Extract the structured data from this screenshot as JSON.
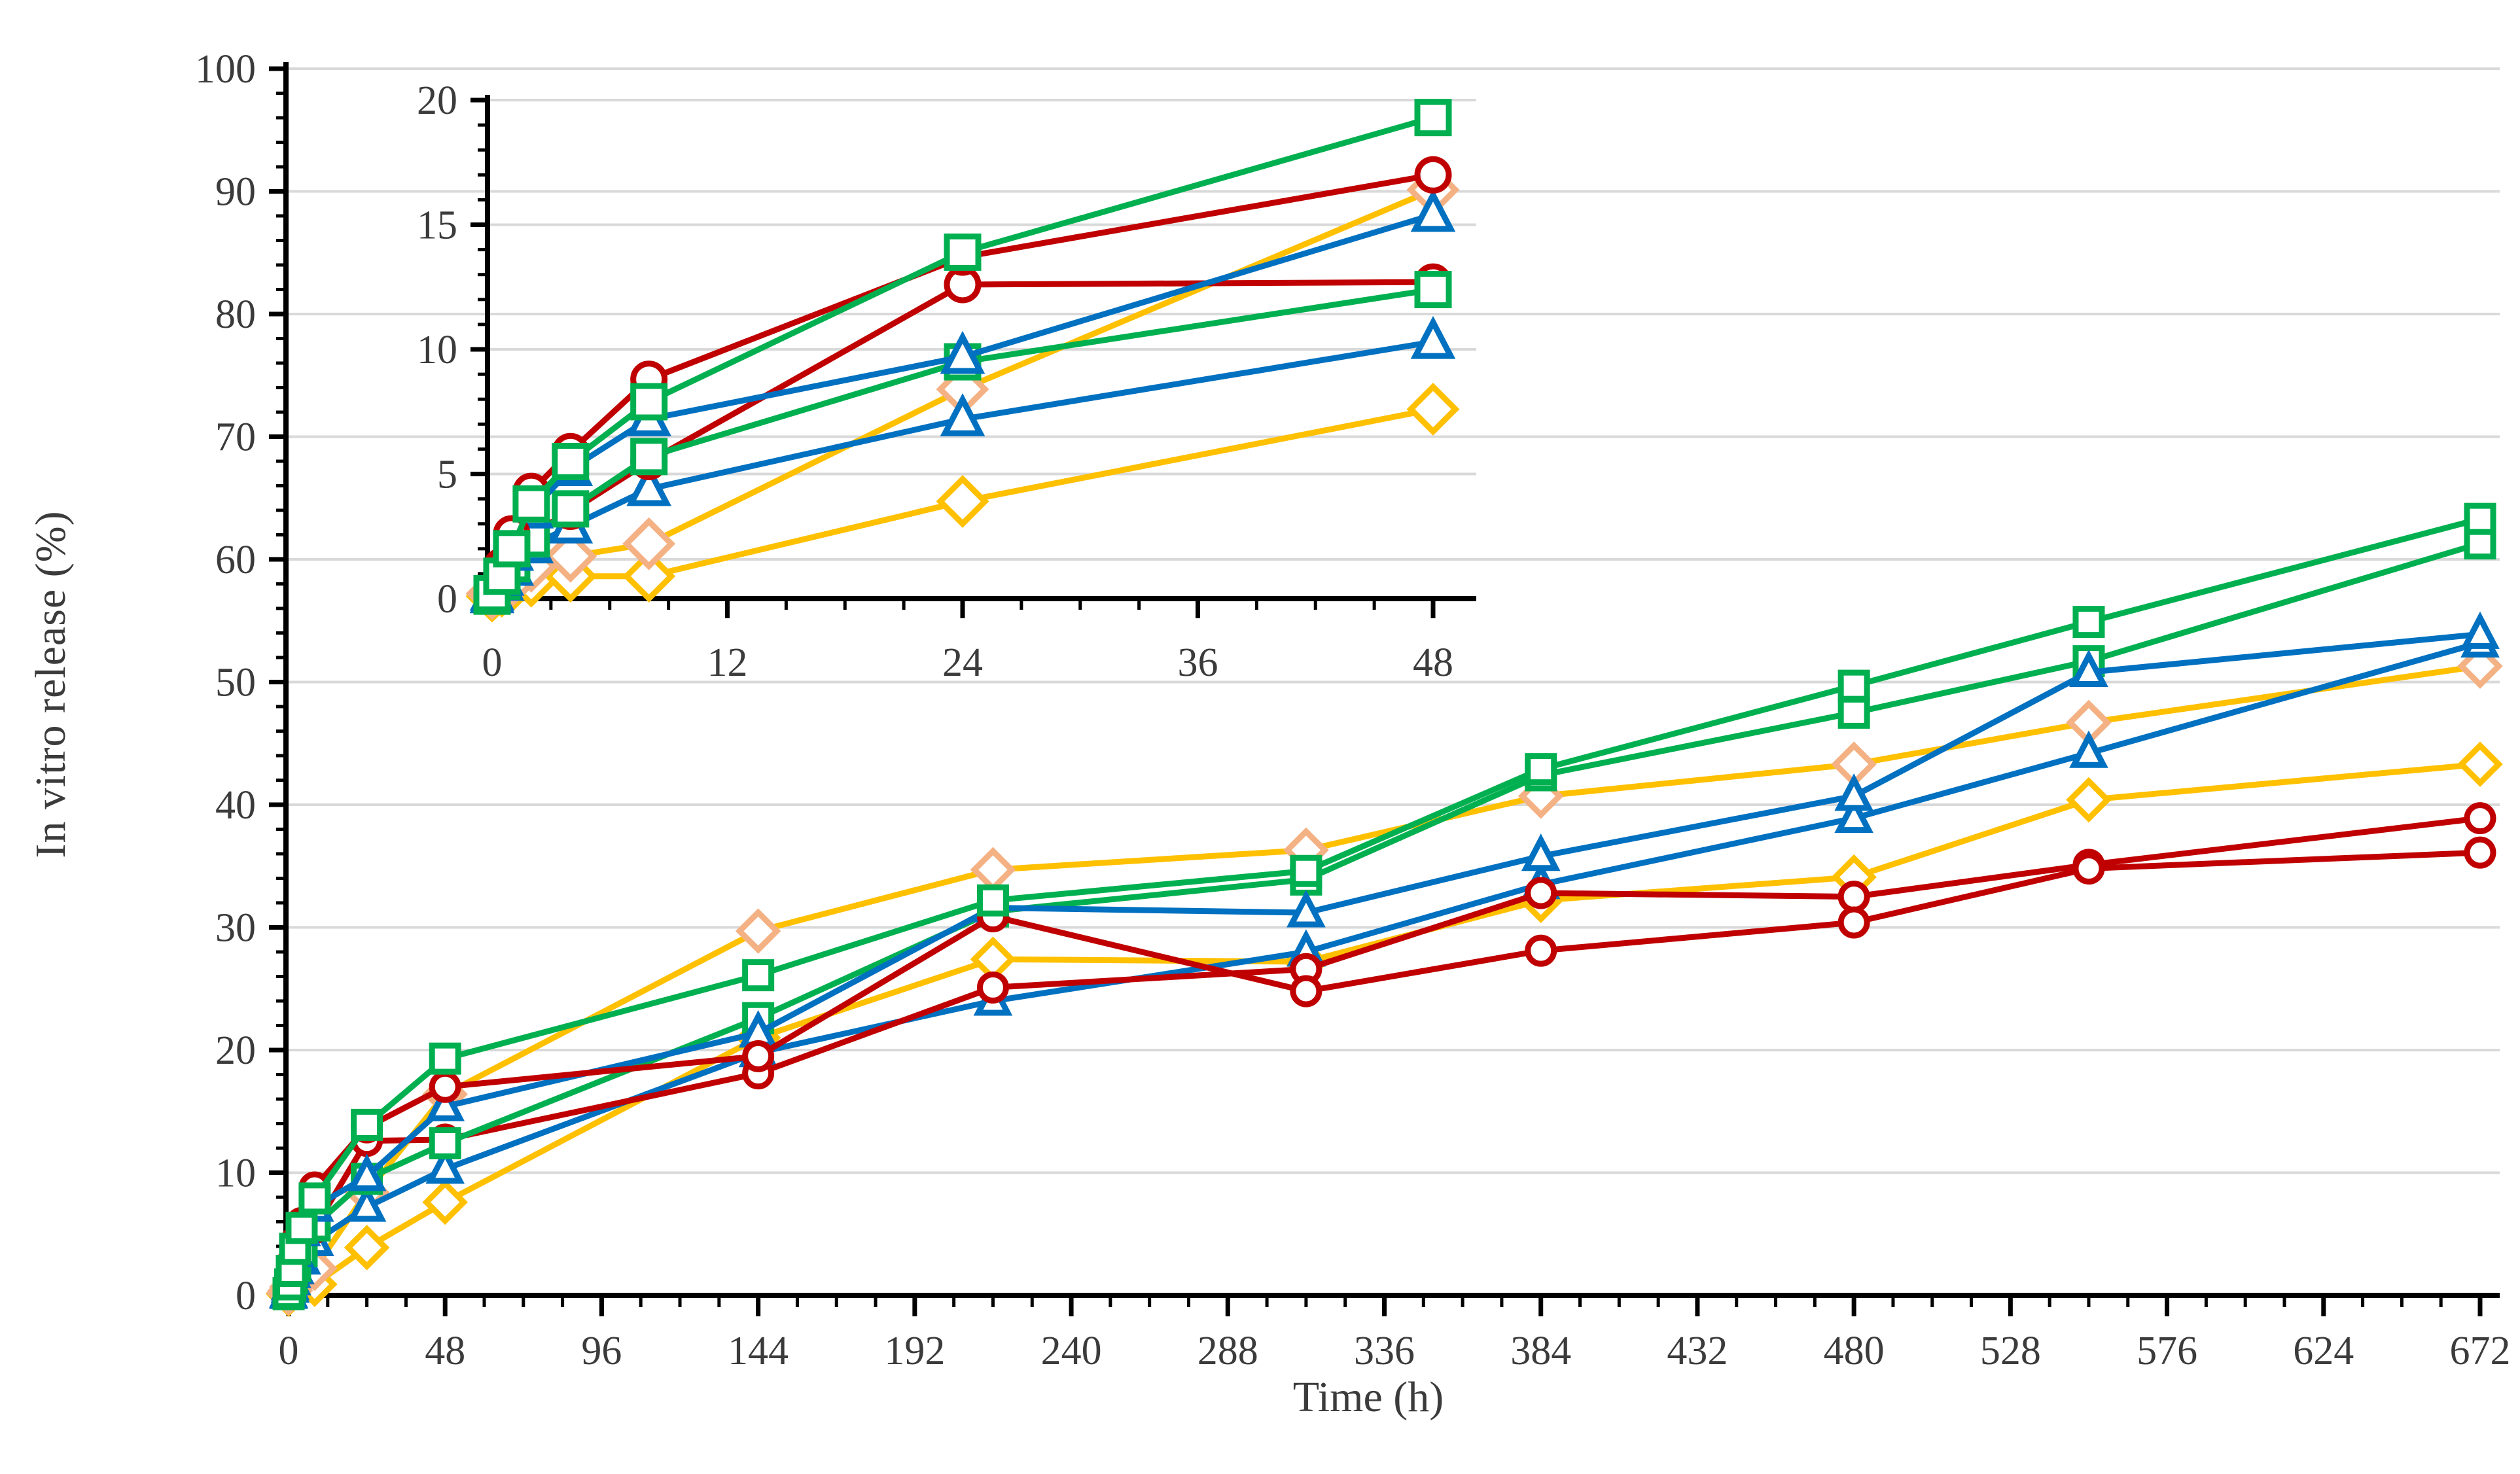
{
  "chart_data": {
    "type": "line",
    "title": "",
    "xlabel": "Time (h)",
    "ylabel": "In vitro release (%)",
    "grid": "horizontal-only",
    "legend": "none",
    "main_axes": {
      "xlim": [
        0,
        672
      ],
      "ylim": [
        0,
        100
      ],
      "x_major_ticks": [
        0,
        48,
        96,
        144,
        192,
        240,
        288,
        336,
        384,
        432,
        480,
        528,
        576,
        624,
        672
      ],
      "x_minor_step": 12,
      "y_major_ticks": [
        0,
        10,
        20,
        30,
        40,
        50,
        60,
        70,
        80,
        90,
        100
      ],
      "y_minor_step": 2
    },
    "inset_axes": {
      "xlim": [
        0,
        48
      ],
      "ylim": [
        0,
        20
      ],
      "x_major_ticks": [
        0,
        12,
        24,
        36,
        48
      ],
      "x_minor_step": 3,
      "y_major_ticks": [
        0,
        5,
        10,
        15,
        20
      ],
      "y_minor_step": 1,
      "note": "inset shows the 0-48 h portion of the same series"
    },
    "x": [
      0,
      0.5,
      1,
      2,
      4,
      8,
      24,
      48,
      144,
      216,
      312,
      384,
      480,
      552,
      672
    ],
    "series": [
      {
        "name": "red-circle-1",
        "marker": "circle",
        "line_color": "#C00000",
        "marker_color": "#C00000",
        "values": [
          0.3,
          1.3,
          2.6,
          4.3,
          5.9,
          8.8,
          13.7,
          17.0,
          19.5,
          30.9,
          24.8,
          28.1,
          30.4,
          34.8,
          36.1
        ]
      },
      {
        "name": "red-circle-2",
        "marker": "circle",
        "line_color": "#C00000",
        "marker_color": "#C00000",
        "values": [
          0.2,
          0.8,
          1.5,
          2.6,
          3.5,
          5.5,
          12.6,
          12.7,
          18.1,
          25.1,
          26.6,
          32.8,
          32.5,
          35.1,
          38.9
        ]
      },
      {
        "name": "green-square-1",
        "marker": "square",
        "line_color": "#00B050",
        "marker_color": "#00B050",
        "values": [
          0.2,
          0.9,
          2.0,
          3.8,
          5.5,
          7.9,
          13.9,
          19.3,
          26.1,
          32.2,
          34.6,
          42.9,
          49.7,
          54.9,
          63.3
        ]
      },
      {
        "name": "green-square-2",
        "marker": "square",
        "line_color": "#00B050",
        "marker_color": "#00B050",
        "values": [
          0.1,
          0.7,
          1.4,
          2.4,
          3.6,
          5.7,
          9.5,
          12.4,
          22.6,
          31.3,
          33.9,
          42.4,
          47.5,
          51.7,
          61.3
        ]
      },
      {
        "name": "blue-triangle-1",
        "marker": "triangle",
        "line_color": "#0070C0",
        "marker_color": "#0070C0",
        "values": [
          0.2,
          0.8,
          1.8,
          3.5,
          5.2,
          7.2,
          9.7,
          15.4,
          21.4,
          31.6,
          31.2,
          35.8,
          40.7,
          50.8,
          53.9
        ]
      },
      {
        "name": "blue-triangle-2",
        "marker": "triangle",
        "line_color": "#0070C0",
        "marker_color": "#0070C0",
        "values": [
          0.1,
          0.6,
          1.2,
          2.1,
          2.9,
          4.4,
          7.2,
          10.3,
          19.8,
          24.0,
          28.0,
          33.5,
          38.9,
          44.2,
          53.2
        ]
      },
      {
        "name": "peach-diamond",
        "marker": "diamond",
        "line_color": "#FFC000",
        "marker_color": "#F4B183",
        "values": [
          0.2,
          0.4,
          0.7,
          1.3,
          1.7,
          2.2,
          8.4,
          16.4,
          29.7,
          34.7,
          36.3,
          40.7,
          43.3,
          46.7,
          51.3
        ]
      },
      {
        "name": "gold-diamond",
        "marker": "diamond",
        "line_color": "#FFC000",
        "marker_color": "#FFC000",
        "values": [
          0.1,
          0.3,
          0.5,
          0.7,
          0.9,
          0.9,
          3.9,
          7.6,
          21.0,
          27.4,
          27.2,
          32.2,
          34.1,
          40.4,
          43.3
        ]
      }
    ],
    "colors": {
      "red": "#C00000",
      "green": "#00B050",
      "blue": "#0070C0",
      "gold": "#FFC000",
      "peach": "#F4B183",
      "gridline": "#D9D9D9",
      "axis": "#000000",
      "tick_label": "#3b3b3b"
    }
  },
  "labels": {
    "y_axis_title": "In vitro release (%)",
    "x_axis_title": "Time (h)"
  }
}
